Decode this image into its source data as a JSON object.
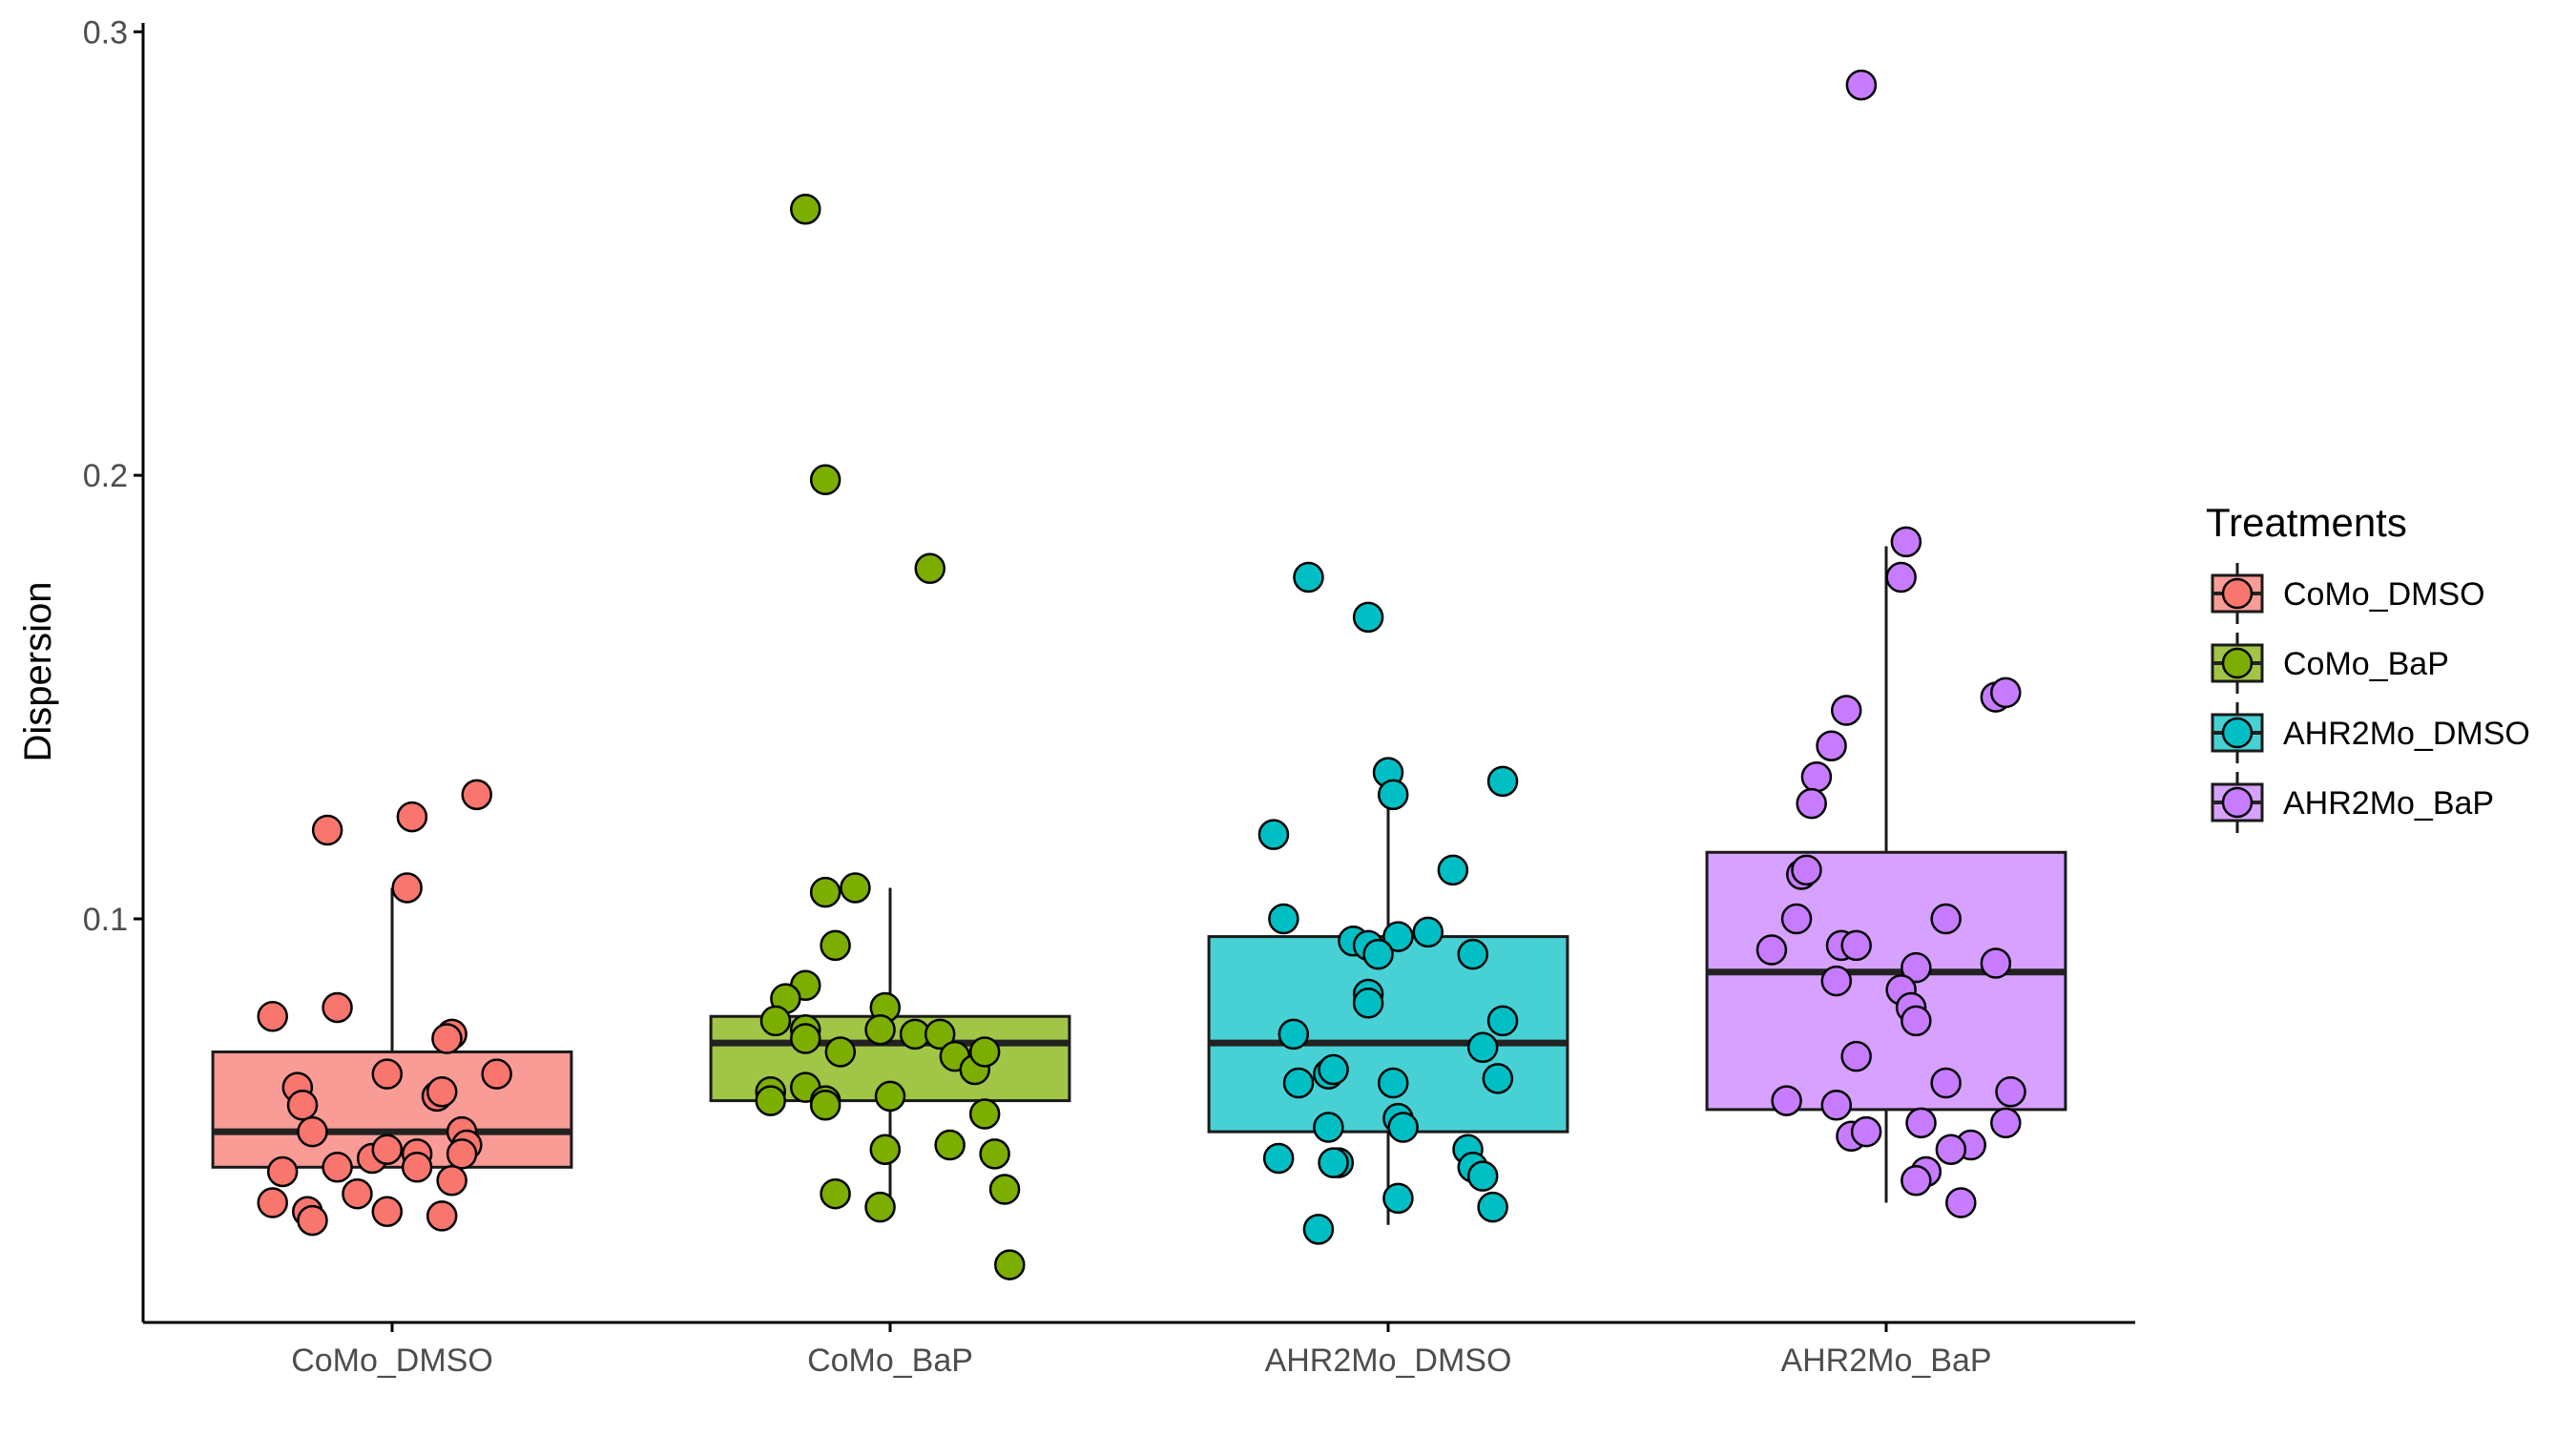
{
  "chart_data": {
    "type": "box",
    "categories": [
      "CoMo_DMSO",
      "CoMo_BaP",
      "AHR2Mo_DMSO",
      "AHR2Mo_BaP"
    ],
    "xlabel": "",
    "ylabel": "Dispersion",
    "ylim": [
      0.009,
      0.302
    ],
    "yticks": [
      0.1,
      0.2,
      0.3
    ],
    "ytick_labels": [
      "0.1",
      "0.2",
      "0.3"
    ],
    "grid": false,
    "legend": {
      "title": "Treatments",
      "position": "right"
    },
    "colors": {
      "CoMo_DMSO": "#F8766D",
      "CoMo_BaP": "#7CAE00",
      "AHR2Mo_DMSO": "#00BFC4",
      "AHR2Mo_BaP": "#C77CFF"
    },
    "boxes": [
      {
        "name": "CoMo_DMSO",
        "q1": 0.044,
        "median": 0.052,
        "q3": 0.07,
        "whisker_low": 0.044,
        "whisker_high": 0.107
      },
      {
        "name": "CoMo_BaP",
        "q1": 0.059,
        "median": 0.072,
        "q3": 0.078,
        "whisker_low": 0.034,
        "whisker_high": 0.107
      },
      {
        "name": "AHR2Mo_DMSO",
        "q1": 0.052,
        "median": 0.072,
        "q3": 0.096,
        "whisker_low": 0.031,
        "whisker_high": 0.133
      },
      {
        "name": "AHR2Mo_BaP",
        "q1": 0.057,
        "median": 0.088,
        "q3": 0.115,
        "whisker_low": 0.036,
        "whisker_high": 0.184
      }
    ],
    "points": [
      {
        "name": "CoMo_DMSO",
        "values": [
          {
            "jitter": -0.24,
            "y": 0.078
          },
          {
            "jitter": -0.11,
            "y": 0.08
          },
          {
            "jitter": -0.13,
            "y": 0.12
          },
          {
            "jitter": 0.03,
            "y": 0.107
          },
          {
            "jitter": 0.04,
            "y": 0.123
          },
          {
            "jitter": 0.17,
            "y": 0.128
          },
          {
            "jitter": 0.12,
            "y": 0.074
          },
          {
            "jitter": 0.11,
            "y": 0.073
          },
          {
            "jitter": 0.21,
            "y": 0.065
          },
          {
            "jitter": -0.19,
            "y": 0.062
          },
          {
            "jitter": -0.18,
            "y": 0.058
          },
          {
            "jitter": -0.01,
            "y": 0.065
          },
          {
            "jitter": 0.09,
            "y": 0.06
          },
          {
            "jitter": 0.1,
            "y": 0.061
          },
          {
            "jitter": -0.16,
            "y": 0.052
          },
          {
            "jitter": 0.14,
            "y": 0.052
          },
          {
            "jitter": 0.15,
            "y": 0.049
          },
          {
            "jitter": 0.14,
            "y": 0.047
          },
          {
            "jitter": -0.22,
            "y": 0.043
          },
          {
            "jitter": -0.11,
            "y": 0.044
          },
          {
            "jitter": -0.04,
            "y": 0.046
          },
          {
            "jitter": -0.01,
            "y": 0.048
          },
          {
            "jitter": 0.05,
            "y": 0.047
          },
          {
            "jitter": 0.05,
            "y": 0.044
          },
          {
            "jitter": 0.12,
            "y": 0.041
          },
          {
            "jitter": -0.24,
            "y": 0.036
          },
          {
            "jitter": -0.17,
            "y": 0.034
          },
          {
            "jitter": -0.07,
            "y": 0.038
          },
          {
            "jitter": -0.01,
            "y": 0.034
          },
          {
            "jitter": 0.1,
            "y": 0.033
          },
          {
            "jitter": -0.16,
            "y": 0.032
          }
        ]
      },
      {
        "name": "CoMo_BaP",
        "values": [
          {
            "jitter": -0.17,
            "y": 0.26
          },
          {
            "jitter": -0.13,
            "y": 0.199
          },
          {
            "jitter": 0.08,
            "y": 0.179
          },
          {
            "jitter": -0.13,
            "y": 0.106
          },
          {
            "jitter": -0.07,
            "y": 0.107
          },
          {
            "jitter": -0.11,
            "y": 0.094
          },
          {
            "jitter": -0.17,
            "y": 0.085
          },
          {
            "jitter": -0.21,
            "y": 0.082
          },
          {
            "jitter": -0.23,
            "y": 0.077
          },
          {
            "jitter": -0.17,
            "y": 0.075
          },
          {
            "jitter": -0.17,
            "y": 0.073
          },
          {
            "jitter": -0.1,
            "y": 0.07
          },
          {
            "jitter": -0.01,
            "y": 0.08
          },
          {
            "jitter": -0.02,
            "y": 0.075
          },
          {
            "jitter": 0.05,
            "y": 0.074
          },
          {
            "jitter": 0.1,
            "y": 0.074
          },
          {
            "jitter": 0.13,
            "y": 0.069
          },
          {
            "jitter": 0.17,
            "y": 0.066
          },
          {
            "jitter": 0.19,
            "y": 0.07
          },
          {
            "jitter": -0.24,
            "y": 0.061
          },
          {
            "jitter": -0.24,
            "y": 0.059
          },
          {
            "jitter": -0.17,
            "y": 0.062
          },
          {
            "jitter": -0.13,
            "y": 0.059
          },
          {
            "jitter": -0.13,
            "y": 0.058
          },
          {
            "jitter": 0.0,
            "y": 0.06
          },
          {
            "jitter": 0.19,
            "y": 0.056
          },
          {
            "jitter": -0.01,
            "y": 0.048
          },
          {
            "jitter": 0.12,
            "y": 0.049
          },
          {
            "jitter": 0.21,
            "y": 0.047
          },
          {
            "jitter": -0.11,
            "y": 0.038
          },
          {
            "jitter": -0.02,
            "y": 0.035
          },
          {
            "jitter": 0.23,
            "y": 0.039
          },
          {
            "jitter": 0.24,
            "y": 0.022
          }
        ]
      },
      {
        "name": "AHR2Mo_DMSO",
        "values": [
          {
            "jitter": -0.16,
            "y": 0.177
          },
          {
            "jitter": -0.04,
            "y": 0.168
          },
          {
            "jitter": 0.0,
            "y": 0.133
          },
          {
            "jitter": 0.23,
            "y": 0.131
          },
          {
            "jitter": 0.01,
            "y": 0.128
          },
          {
            "jitter": -0.23,
            "y": 0.119
          },
          {
            "jitter": 0.13,
            "y": 0.111
          },
          {
            "jitter": -0.21,
            "y": 0.1
          },
          {
            "jitter": 0.08,
            "y": 0.097
          },
          {
            "jitter": -0.07,
            "y": 0.095
          },
          {
            "jitter": 0.02,
            "y": 0.096
          },
          {
            "jitter": -0.04,
            "y": 0.094
          },
          {
            "jitter": -0.02,
            "y": 0.092
          },
          {
            "jitter": 0.17,
            "y": 0.092
          },
          {
            "jitter": -0.04,
            "y": 0.083
          },
          {
            "jitter": -0.04,
            "y": 0.081
          },
          {
            "jitter": 0.23,
            "y": 0.077
          },
          {
            "jitter": -0.19,
            "y": 0.074
          },
          {
            "jitter": 0.19,
            "y": 0.071
          },
          {
            "jitter": -0.12,
            "y": 0.065
          },
          {
            "jitter": -0.11,
            "y": 0.066
          },
          {
            "jitter": 0.01,
            "y": 0.063
          },
          {
            "jitter": -0.18,
            "y": 0.063
          },
          {
            "jitter": 0.22,
            "y": 0.064
          },
          {
            "jitter": 0.02,
            "y": 0.055
          },
          {
            "jitter": 0.03,
            "y": 0.053
          },
          {
            "jitter": -0.12,
            "y": 0.053
          },
          {
            "jitter": 0.16,
            "y": 0.048
          },
          {
            "jitter": 0.17,
            "y": 0.044
          },
          {
            "jitter": 0.19,
            "y": 0.042
          },
          {
            "jitter": -0.22,
            "y": 0.046
          },
          {
            "jitter": -0.1,
            "y": 0.045
          },
          {
            "jitter": -0.11,
            "y": 0.045
          },
          {
            "jitter": 0.02,
            "y": 0.037
          },
          {
            "jitter": 0.21,
            "y": 0.035
          },
          {
            "jitter": -0.14,
            "y": 0.03
          }
        ]
      },
      {
        "name": "AHR2Mo_BaP",
        "values": [
          {
            "jitter": -0.05,
            "y": 0.288
          },
          {
            "jitter": 0.04,
            "y": 0.185
          },
          {
            "jitter": 0.03,
            "y": 0.177
          },
          {
            "jitter": 0.22,
            "y": 0.15
          },
          {
            "jitter": 0.24,
            "y": 0.151
          },
          {
            "jitter": -0.08,
            "y": 0.147
          },
          {
            "jitter": -0.11,
            "y": 0.139
          },
          {
            "jitter": -0.14,
            "y": 0.132
          },
          {
            "jitter": -0.15,
            "y": 0.126
          },
          {
            "jitter": -0.17,
            "y": 0.11
          },
          {
            "jitter": -0.16,
            "y": 0.111
          },
          {
            "jitter": -0.18,
            "y": 0.1
          },
          {
            "jitter": 0.12,
            "y": 0.1
          },
          {
            "jitter": -0.23,
            "y": 0.093
          },
          {
            "jitter": -0.09,
            "y": 0.094
          },
          {
            "jitter": -0.06,
            "y": 0.094
          },
          {
            "jitter": 0.06,
            "y": 0.089
          },
          {
            "jitter": 0.22,
            "y": 0.09
          },
          {
            "jitter": -0.1,
            "y": 0.086
          },
          {
            "jitter": 0.03,
            "y": 0.084
          },
          {
            "jitter": 0.05,
            "y": 0.08
          },
          {
            "jitter": 0.06,
            "y": 0.077
          },
          {
            "jitter": -0.06,
            "y": 0.069
          },
          {
            "jitter": 0.12,
            "y": 0.063
          },
          {
            "jitter": 0.25,
            "y": 0.061
          },
          {
            "jitter": -0.2,
            "y": 0.059
          },
          {
            "jitter": -0.1,
            "y": 0.058
          },
          {
            "jitter": 0.07,
            "y": 0.054
          },
          {
            "jitter": 0.24,
            "y": 0.054
          },
          {
            "jitter": -0.07,
            "y": 0.051
          },
          {
            "jitter": -0.04,
            "y": 0.052
          },
          {
            "jitter": 0.17,
            "y": 0.049
          },
          {
            "jitter": 0.13,
            "y": 0.048
          },
          {
            "jitter": 0.08,
            "y": 0.043
          },
          {
            "jitter": 0.06,
            "y": 0.041
          },
          {
            "jitter": 0.15,
            "y": 0.036
          }
        ]
      }
    ]
  }
}
